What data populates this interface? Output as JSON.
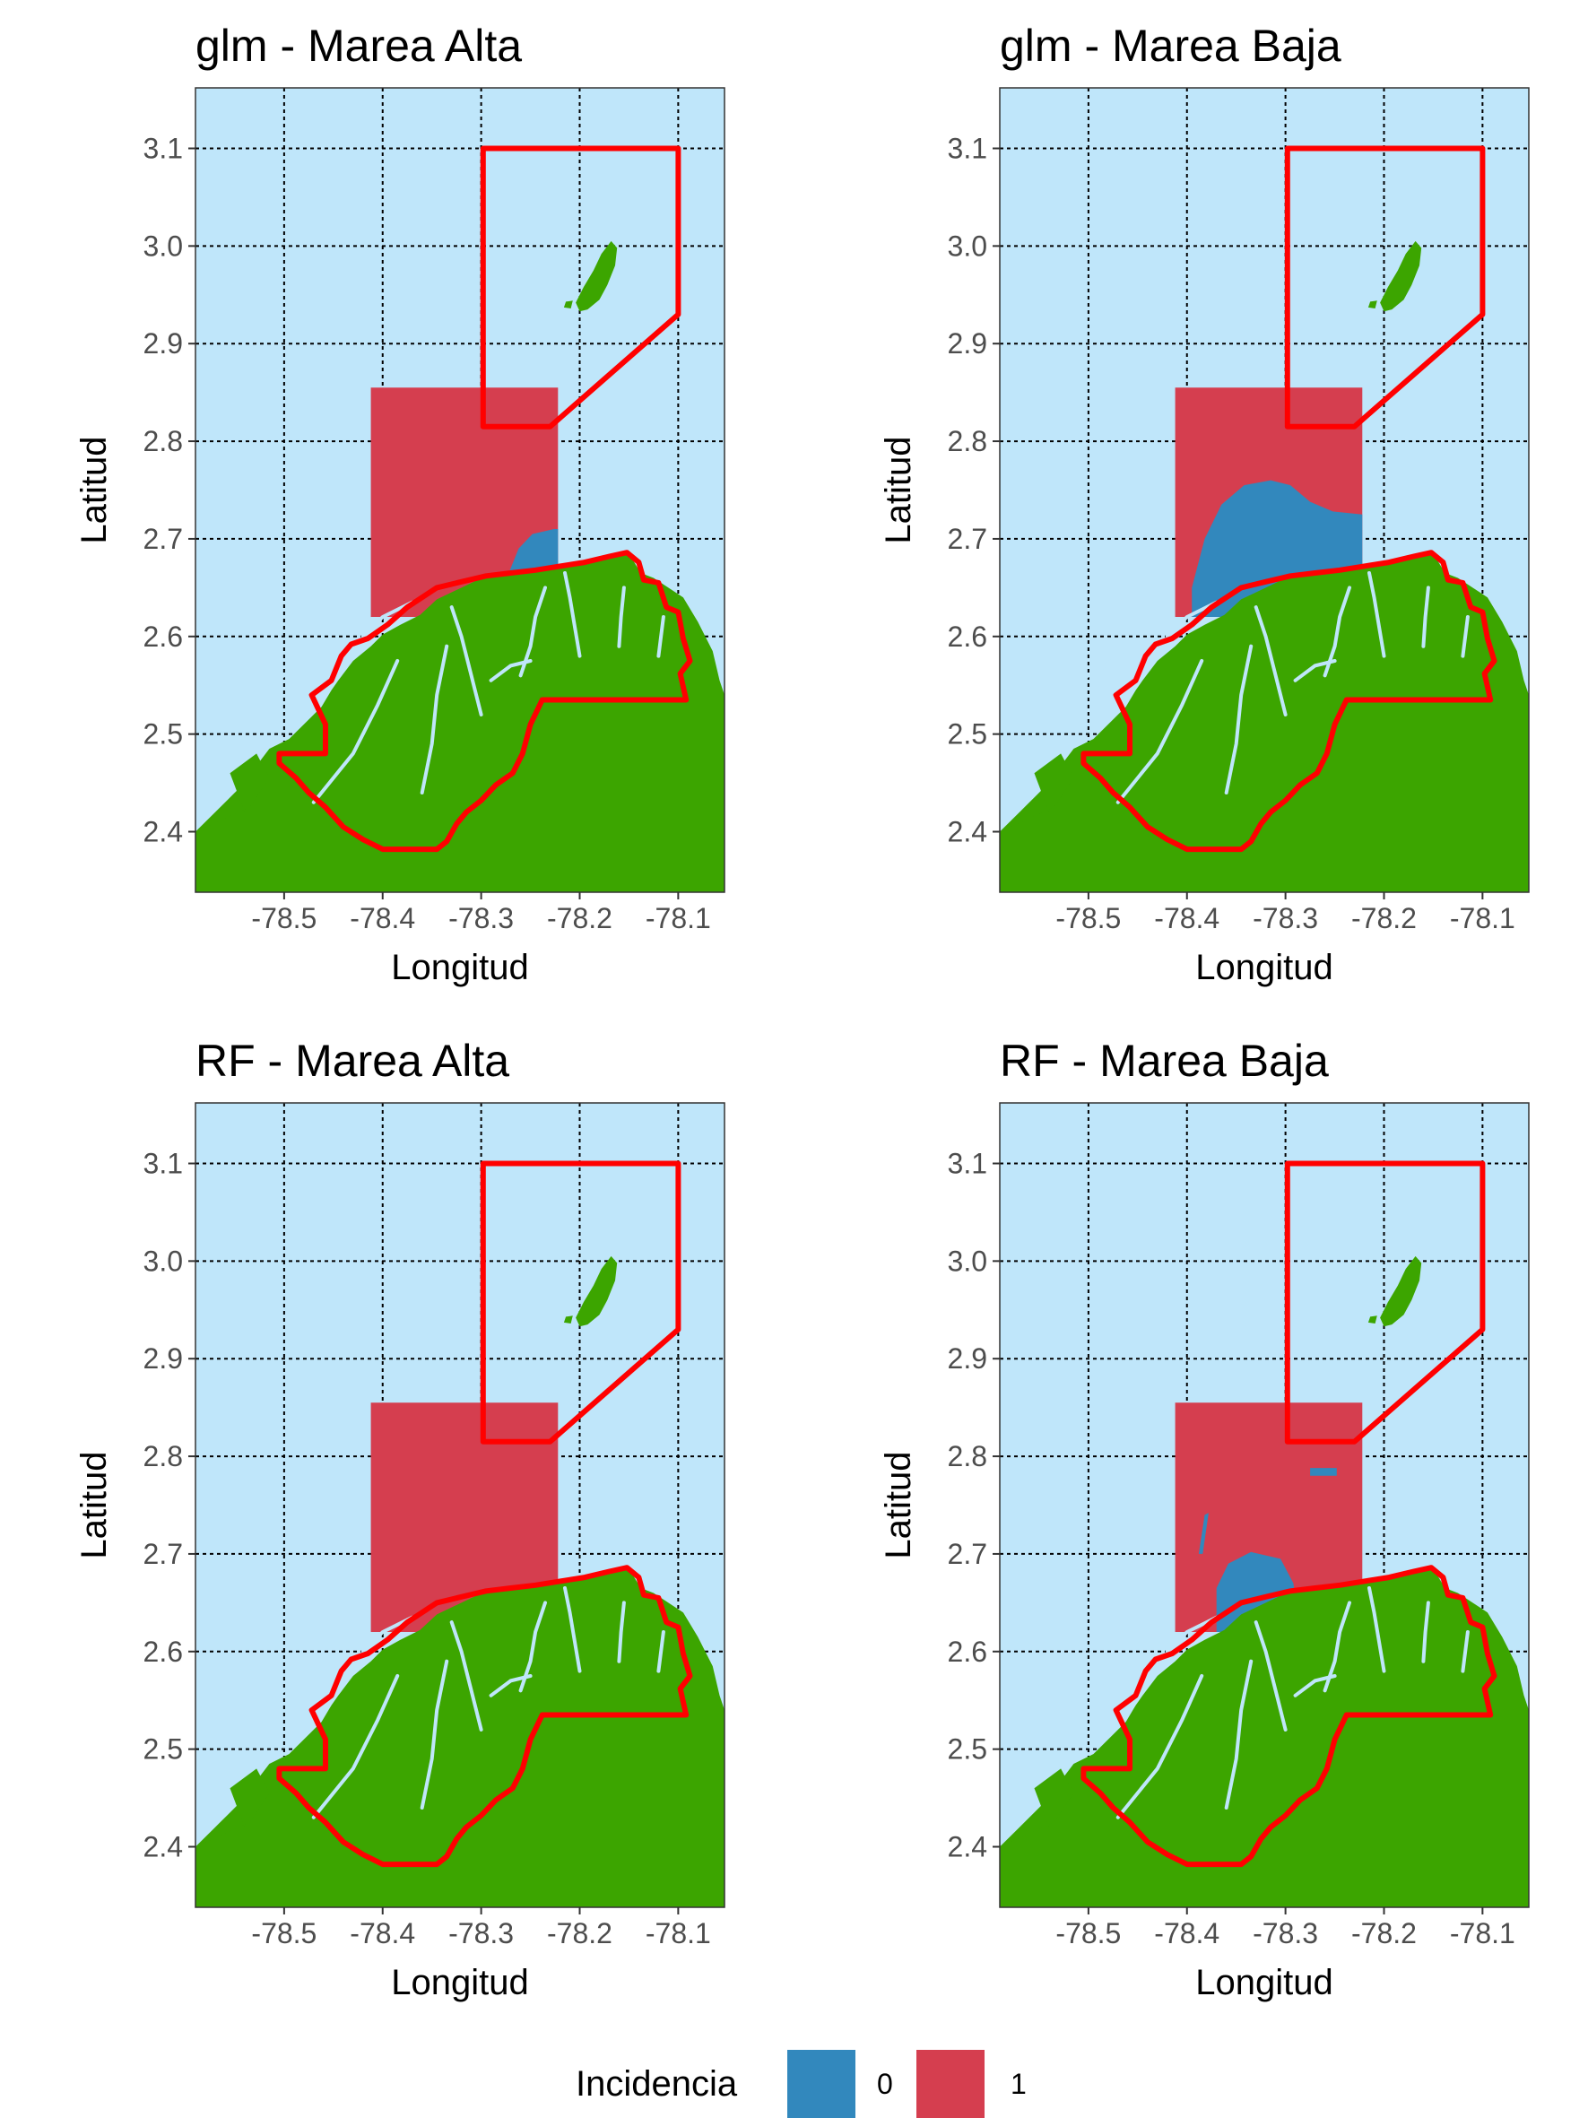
{
  "colors": {
    "sea": "#bfe6fa",
    "land": "#3ca500",
    "class_0": "#3288bd",
    "class_1": "#d53e4f",
    "boundary": "#ff0000",
    "grid": "#000000"
  },
  "axes": {
    "xlabel": "Longitud",
    "ylabel": "Latitud",
    "xlim": [
      -78.59,
      -78.053
    ],
    "ylim": [
      2.338,
      3.162
    ],
    "xticks": [
      -78.5,
      -78.4,
      -78.3,
      -78.2,
      -78.1
    ],
    "yticks": [
      2.4,
      2.5,
      2.6,
      2.7,
      2.8,
      2.9,
      3.0,
      3.1
    ],
    "xtick_labels": [
      "-78.5",
      "-78.4",
      "-78.3",
      "-78.2",
      "-78.1"
    ],
    "ytick_labels": [
      "2.4",
      "2.5",
      "2.6",
      "2.7",
      "2.8",
      "2.9",
      "3.0",
      "3.1"
    ]
  },
  "panels": [
    {
      "title": "glm - Marea Alta",
      "zero_zone": "small-corner"
    },
    {
      "title": "glm - Marea Baja",
      "zero_zone": "large"
    },
    {
      "title": "RF - Marea Alta",
      "zero_zone": "none"
    },
    {
      "title": "RF - Marea Baja",
      "zero_zone": "medium"
    }
  ],
  "legend": {
    "title": "Incidencia",
    "items": [
      {
        "label": "0",
        "color": "#3288bd"
      },
      {
        "label": "1",
        "color": "#d53e4f"
      }
    ]
  }
}
